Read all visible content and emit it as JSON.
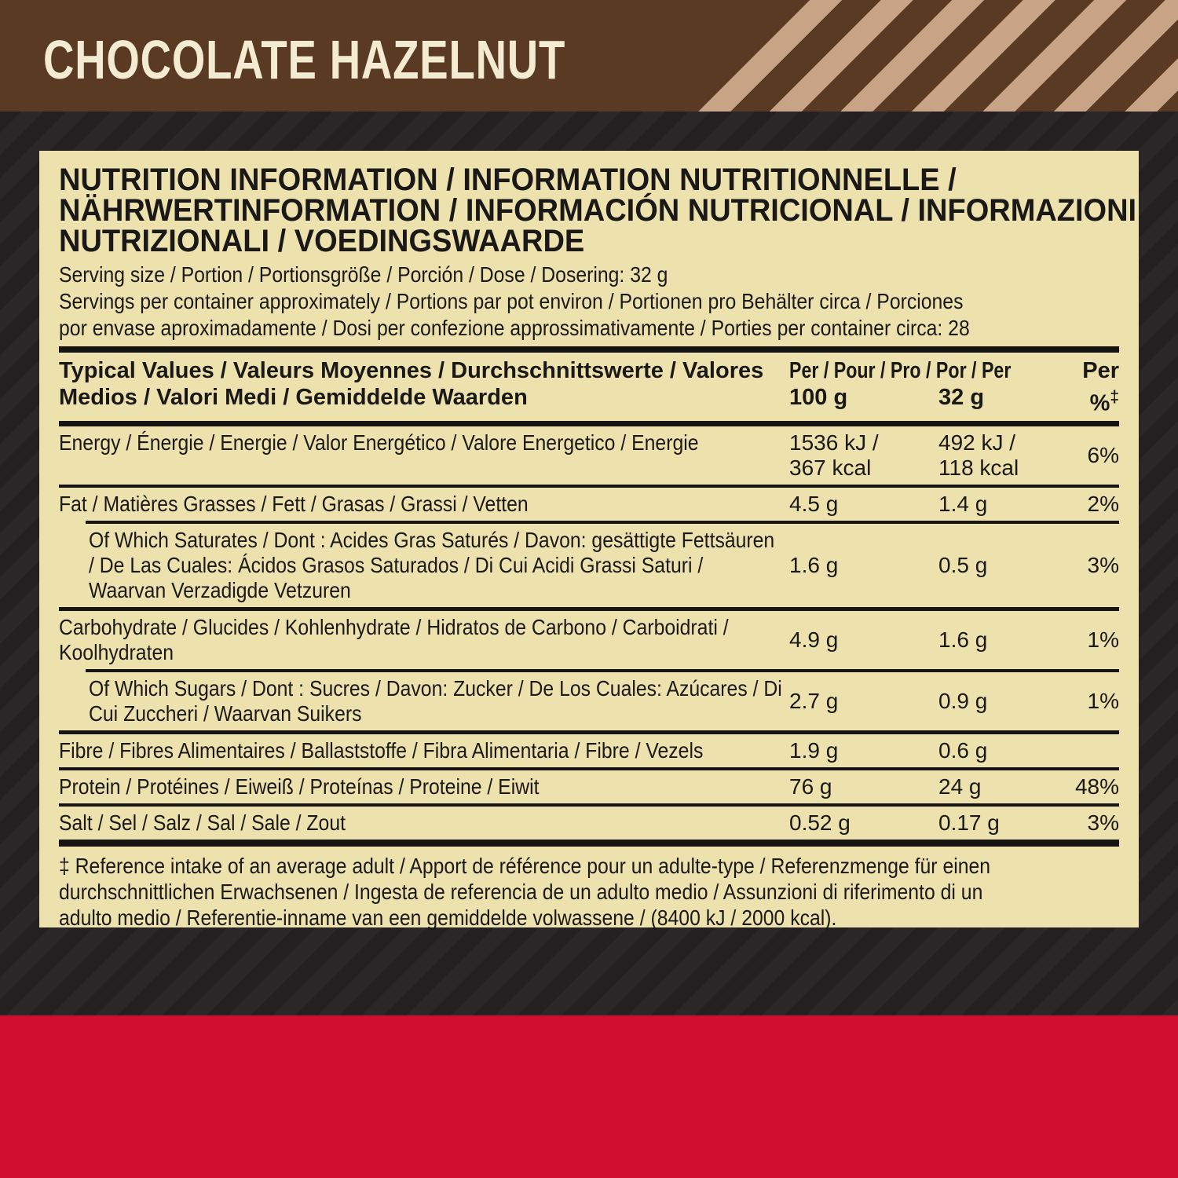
{
  "colors": {
    "banner_brown": "#5b3a23",
    "banner_stripe_tan": "#c8a385",
    "panel_cream": "#ede1ae",
    "text_black": "#1b1918",
    "background_dark": "#242021",
    "background_stripe": "#2b2728",
    "footer_red": "#d20e2e",
    "title_cream": "#f3ebd2"
  },
  "banner": {
    "title": "CHOCOLATE HAZELNUT"
  },
  "panel": {
    "heading_lines": [
      "NUTRITION INFORMATION / INFORMATION NUTRITIONNELLE /",
      "NÄHRWERTINFORMATION / INFORMACIÓN NUTRICIONAL / INFORMAZIONI",
      "NUTRIZIONALI / VOEDINGSWAARDE"
    ],
    "serving_lines": [
      "Serving size / Portion / Portionsgröße / Porción / Dose / Dosering: 32 g",
      "Servings per container approximately / Portions par pot environ / Portionen pro Behälter circa / Porciones",
      "por envase aproximadamente / Dosi per confezione approssimativamente / Porties per container circa: 28"
    ],
    "table": {
      "header": {
        "left_lines": [
          "Typical Values / Valeurs Moyennes / Durchschnittswerte /",
          "Valores Medios / Valori Medi / Gemiddelde Waarden"
        ],
        "per_row_left": "Per / Pour / Pro / Por / Per",
        "per_row_right": "Per",
        "col_100g": "100 g",
        "col_32g": "32 g",
        "pct_symbol": "%",
        "pct_dagger": "‡"
      },
      "rows": [
        {
          "label": "Energy / Énergie / Energie / Valor Energético / Valore Energetico / Energie",
          "per100": "1536 kJ /\n367 kcal",
          "per32": "492 kJ /\n118 kcal",
          "pct": "6%"
        },
        {
          "label": "Fat / Matières Grasses / Fett / Grasas / Grassi / Vetten",
          "per100": "4.5 g",
          "per32": "1.4 g",
          "pct": "2%"
        },
        {
          "label": "Of Which Saturates / Dont : Acides Gras Saturés / Davon: gesättigte Fettsäuren / De Las Cuales: Ácidos Grasos Saturados / Di Cui Acidi Grassi Saturi / Waarvan Verzadigde Vetzuren",
          "per100": "1.6 g",
          "per32": "0.5 g",
          "pct": "3%"
        },
        {
          "label": "Carbohydrate / Glucides / Kohlenhydrate / Hidratos de Carbono / Carboidrati / Koolhydraten",
          "per100": "4.9 g",
          "per32": "1.6 g",
          "pct": "1%"
        },
        {
          "label": "Of Which Sugars / Dont : Sucres / Davon: Zucker / De Los Cuales: Azúcares / Di Cui Zuccheri / Waarvan Suikers",
          "per100": "2.7 g",
          "per32": "0.9 g",
          "pct": "1%"
        },
        {
          "label": "Fibre / Fibres Alimentaires / Ballaststoffe / Fibra Alimentaria / Fibre / Vezels",
          "per100": "1.9 g",
          "per32": "0.6 g",
          "pct": ""
        },
        {
          "label": "Protein / Protéines / Eiweiß / Proteínas / Proteine / Eiwit",
          "per100": "76 g",
          "per32": "24 g",
          "pct": "48%"
        },
        {
          "label": "Salt / Sel / Salz / Sal / Sale / Zout",
          "per100": "0.52 g",
          "per32": "0.17 g",
          "pct": "3%"
        }
      ]
    },
    "footnote_lines": [
      "‡ Reference intake of an average adult / Apport de référence pour un adulte-type / Referenzmenge für einen",
      "durchschnittlichen Erwachsenen / Ingesta de referencia de un adulto medio / Assunzioni di riferimento di un",
      "adulto medio / Referentie-inname van een gemiddelde volwassene / (8400 kJ / 2000 kcal)."
    ]
  }
}
